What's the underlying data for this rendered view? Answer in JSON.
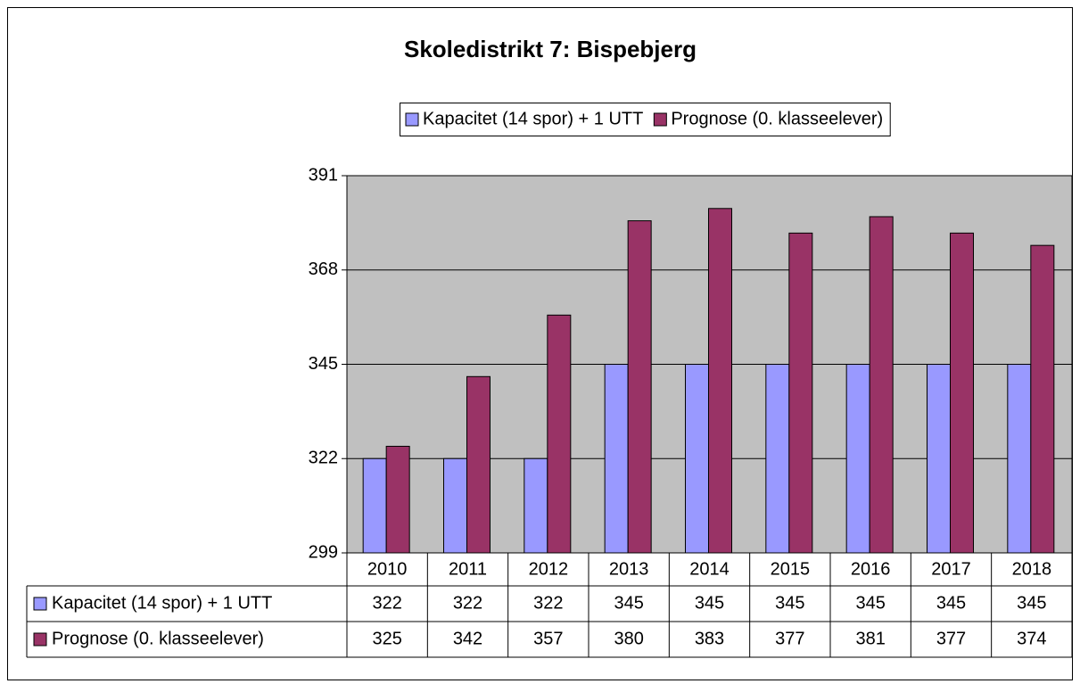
{
  "chart_data": {
    "type": "bar",
    "title": "Skoledistrikt 7: Bispebjerg",
    "categories": [
      "2010",
      "2011",
      "2012",
      "2013",
      "2014",
      "2015",
      "2016",
      "2017",
      "2018"
    ],
    "series": [
      {
        "name": "Kapacitet (14 spor) + 1 UTT",
        "color": "#9999ff",
        "values": [
          322,
          322,
          322,
          345,
          345,
          345,
          345,
          345,
          345
        ]
      },
      {
        "name": "Prognose (0. klasseelever)",
        "color": "#993366",
        "values": [
          325,
          342,
          357,
          380,
          383,
          377,
          381,
          377,
          374
        ]
      }
    ],
    "ylim": [
      299,
      391
    ],
    "yticks": [
      299,
      322,
      345,
      368,
      391
    ],
    "grid": true,
    "plot_background": "#c0c0c0",
    "legend": "top"
  }
}
